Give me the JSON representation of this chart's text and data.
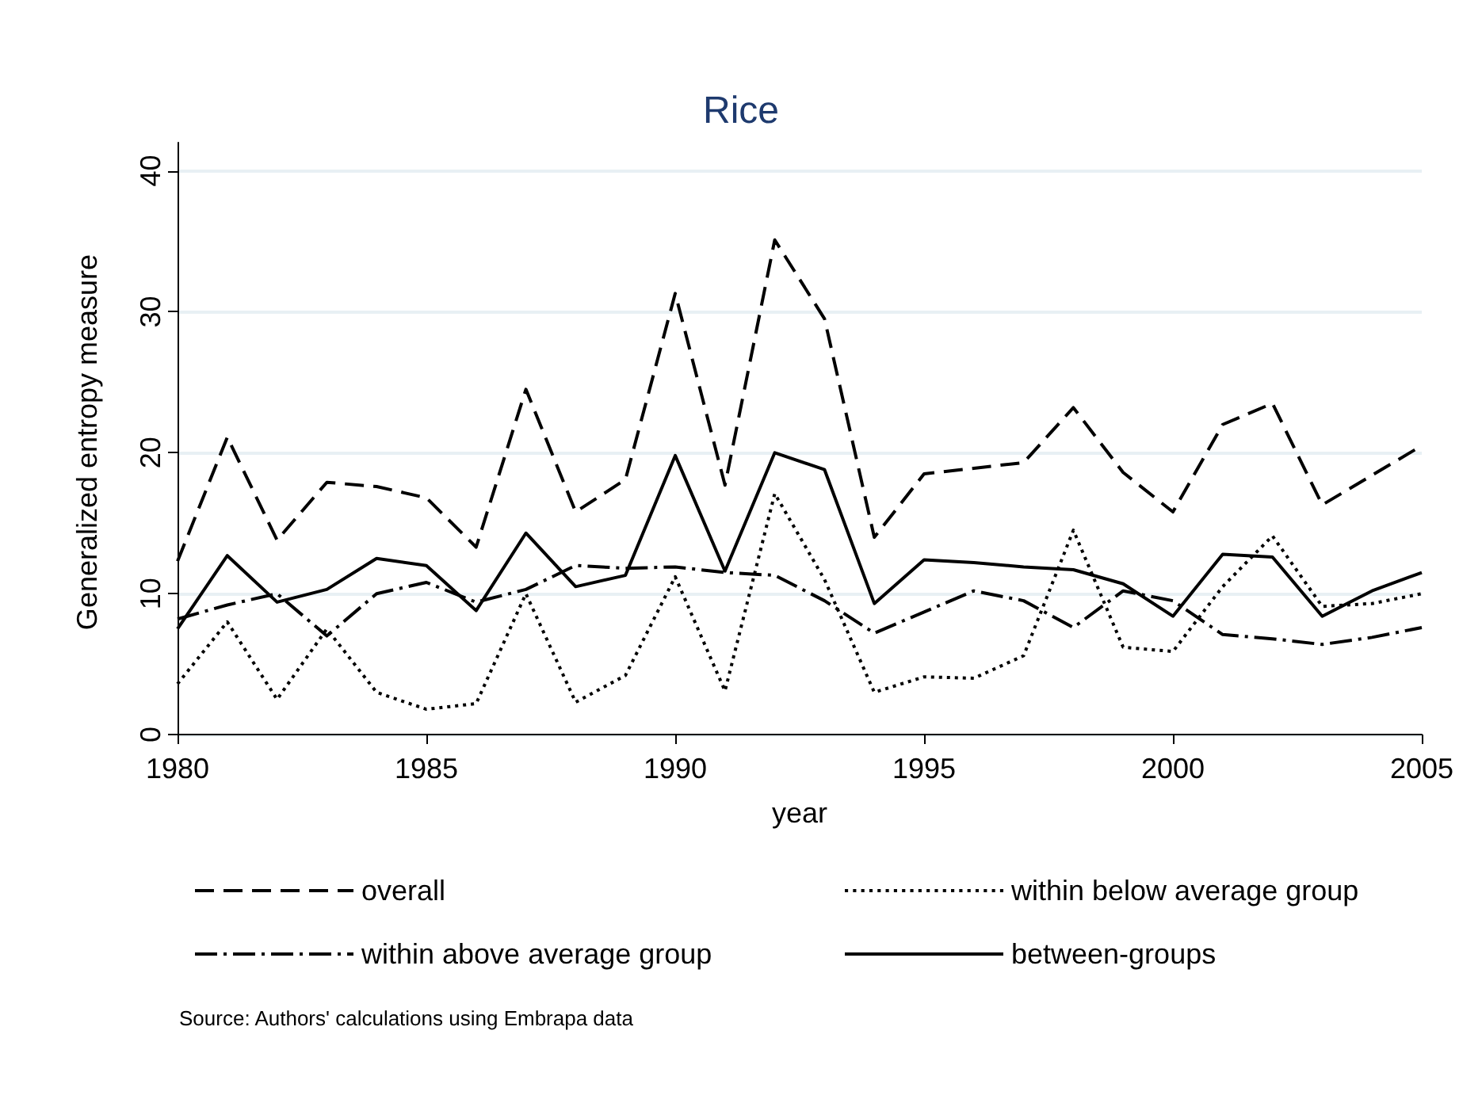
{
  "chart_data": {
    "type": "line",
    "title": "Rice",
    "xlabel": "year",
    "ylabel": "Generalized entropy measure",
    "x": [
      1980,
      1981,
      1982,
      1983,
      1984,
      1985,
      1986,
      1987,
      1988,
      1989,
      1990,
      1991,
      1992,
      1993,
      1994,
      1995,
      1996,
      1997,
      1998,
      1999,
      2000,
      2001,
      2002,
      2003,
      2004,
      2005
    ],
    "series": [
      {
        "name": "overall",
        "color": "#000000",
        "line_style": "dashed",
        "values": [
          12.3,
          21.1,
          13.8,
          17.9,
          17.6,
          16.8,
          13.3,
          24.5,
          15.8,
          18.1,
          31.3,
          17.7,
          35.1,
          29.5,
          14.0,
          18.5,
          18.9,
          19.3,
          23.2,
          18.6,
          15.8,
          22.0,
          23.5,
          16.3,
          18.4,
          20.5
        ]
      },
      {
        "name": "within below average group",
        "color": "#000000",
        "line_style": "dotted",
        "values": [
          3.6,
          8.0,
          2.5,
          7.5,
          3.0,
          1.8,
          2.2,
          10.0,
          2.3,
          4.2,
          11.2,
          3.1,
          17.1,
          11.0,
          3.0,
          4.1,
          4.0,
          5.6,
          14.5,
          6.2,
          5.9,
          10.5,
          14.1,
          9.1,
          9.3,
          10.0
        ]
      },
      {
        "name": "within above average group",
        "color": "#000000",
        "line_style": "dashdot",
        "values": [
          8.2,
          9.2,
          10.0,
          7.0,
          10.0,
          10.8,
          9.4,
          10.3,
          12.0,
          11.8,
          11.9,
          11.5,
          11.3,
          9.5,
          7.2,
          8.7,
          10.2,
          9.5,
          7.6,
          10.2,
          9.5,
          7.1,
          6.8,
          6.4,
          6.9,
          7.6
        ]
      },
      {
        "name": "between-groups",
        "color": "#000000",
        "line_style": "solid",
        "values": [
          7.5,
          12.7,
          9.4,
          10.3,
          12.5,
          12.0,
          8.8,
          14.3,
          10.5,
          11.3,
          19.8,
          11.6,
          20.0,
          18.8,
          9.3,
          12.4,
          12.2,
          11.9,
          11.7,
          10.7,
          8.4,
          12.8,
          12.6,
          8.4,
          10.2,
          11.5
        ]
      }
    ],
    "xlim": [
      1980,
      2005
    ],
    "xticks": [
      1980,
      1985,
      1990,
      1995,
      2000,
      2005
    ],
    "ylim": [
      -0.5,
      42
    ],
    "yticks": [
      0,
      10,
      20,
      30,
      40
    ],
    "grid": "y",
    "legend": "bottom",
    "marker": "none",
    "annotations": [
      "Source: Authors' calculations using Embrapa data"
    ]
  }
}
